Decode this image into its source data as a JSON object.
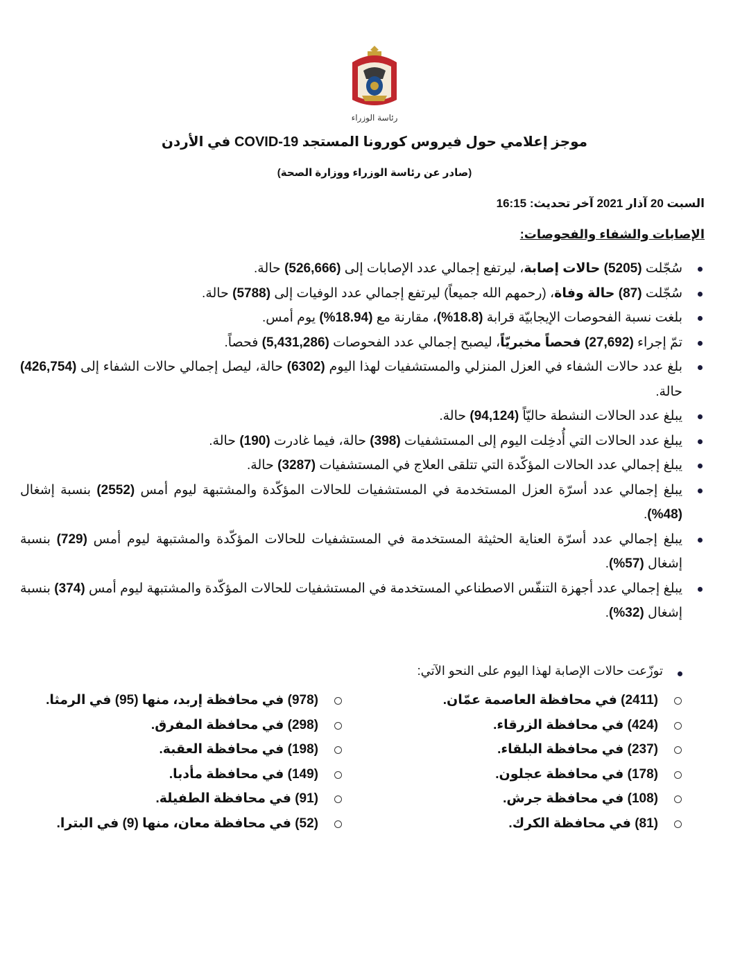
{
  "logo": {
    "lettering": "رئاسة الوزراء",
    "colors": {
      "mantle": "#c0272d",
      "gold": "#c9a23a",
      "shield": "#1f4e8c"
    }
  },
  "header": {
    "title": "موجز إعلامي حول فيروس كورونا المستجد COVID-19 في الأردن",
    "subtitle": "(صادر عن رئاسة الوزراء ووزارة الصحة)",
    "date_line": "السبت 20 آذار 2021 آخر تحديث: 16:15",
    "section_heading": "الإصابات والشفاء والفحوصات:"
  },
  "bullets": [
    [
      {
        "t": "سُجّلت "
      },
      {
        "t": "(5205) حالات إصابة",
        "b": true
      },
      {
        "t": "، ليرتفع إجمالي عدد الإصابات إلى "
      },
      {
        "t": "(526,666)",
        "b": true
      },
      {
        "t": " حالة."
      }
    ],
    [
      {
        "t": "سُجّلت "
      },
      {
        "t": "(87) حالة وفاة",
        "b": true
      },
      {
        "t": "، (رحمهم الله جميعاً) ليرتفع إجمالي عدد الوفيات إلى "
      },
      {
        "t": "(5788)",
        "b": true
      },
      {
        "t": " حالة."
      }
    ],
    [
      {
        "t": "بلغت نسبة الفحوصات الإيجابيّة قرابة "
      },
      {
        "t": "(18.8%)",
        "b": true
      },
      {
        "t": "، مقارنة مع "
      },
      {
        "t": "(18.94%)",
        "b": true
      },
      {
        "t": " يوم أمس."
      }
    ],
    [
      {
        "t": "تمّ إجراء "
      },
      {
        "t": "(27,692) فحصاً مخبريّاً",
        "b": true
      },
      {
        "t": "، ليصبح إجمالي عدد الفحوصات "
      },
      {
        "t": "(5,431,286)",
        "b": true
      },
      {
        "t": " فحصاً."
      }
    ],
    [
      {
        "t": "بلغ عدد حالات الشفاء في العزل المنزلي والمستشفيات لهذا اليوم "
      },
      {
        "t": "(6302)",
        "b": true
      },
      {
        "t": " حالة، ليصل إجمالي حالات الشفاء إلى "
      },
      {
        "t": "(426,754)",
        "b": true
      },
      {
        "t": " حالة."
      }
    ],
    [
      {
        "t": "يبلغ عدد الحالات النشطة حاليّاً "
      },
      {
        "t": "(94,124)",
        "b": true
      },
      {
        "t": " حالة."
      }
    ],
    [
      {
        "t": "يبلغ عدد الحالات التي أُدخِلت اليوم إلى المستشفيات "
      },
      {
        "t": "(398)",
        "b": true
      },
      {
        "t": " حالة، فيما غادرت "
      },
      {
        "t": "(190)",
        "b": true
      },
      {
        "t": " حالة."
      }
    ],
    [
      {
        "t": "يبلغ إجمالي عدد الحالات المؤكّدة التي تتلقى العلاج في المستشفيات "
      },
      {
        "t": "(3287)",
        "b": true
      },
      {
        "t": " حالة."
      }
    ],
    [
      {
        "t": "يبلغ إجمالي عدد أسرّة العزل المستخدمة في المستشفيات للحالات المؤكّدة والمشتبهة ليوم أمس "
      },
      {
        "t": "(2552)",
        "b": true
      },
      {
        "t": " بنسبة إشغال "
      },
      {
        "t": "(48%)",
        "b": true
      },
      {
        "t": "."
      }
    ],
    [
      {
        "t": "يبلغ إجمالي عدد أسرّة العناية الحثيثة المستخدمة في المستشفيات للحالات المؤكّدة والمشتبهة ليوم أمس "
      },
      {
        "t": "(729)",
        "b": true
      },
      {
        "t": " بنسبة إشغال "
      },
      {
        "t": "(57%)",
        "b": true
      },
      {
        "t": "."
      }
    ],
    [
      {
        "t": "يبلغ إجمالي عدد أجهزة التنفّس الاصطناعي المستخدمة في المستشفيات للحالات المؤكّدة والمشتبهة ليوم أمس "
      },
      {
        "t": "(374)",
        "b": true
      },
      {
        "t": " بنسبة إشغال "
      },
      {
        "t": "(32%)",
        "b": true
      },
      {
        "t": "."
      }
    ]
  ],
  "distribution": {
    "heading": "توزّعت حالات الإصابة لهذا اليوم على النحو الآتي:",
    "right_column": [
      "(2411) في محافظة العاصمة عمّان.",
      "(424) في محافظة الزرقاء.",
      "(237) في محافظة البلقاء.",
      "(178) في محافظة عجلون.",
      "(108) في محافظة جرش.",
      "(81) في محافظة الكرك."
    ],
    "left_column": [
      "(978) في محافظة إربد، منها (95) في الرمثا.",
      "(298) في محافظة المفرق.",
      "(198) في محافظة العقبة.",
      "(149) في محافظة مأدبا.",
      "(91) في محافظة الطفيلة.",
      "(52) في محافظة معان، منها (9) في البترا."
    ]
  }
}
